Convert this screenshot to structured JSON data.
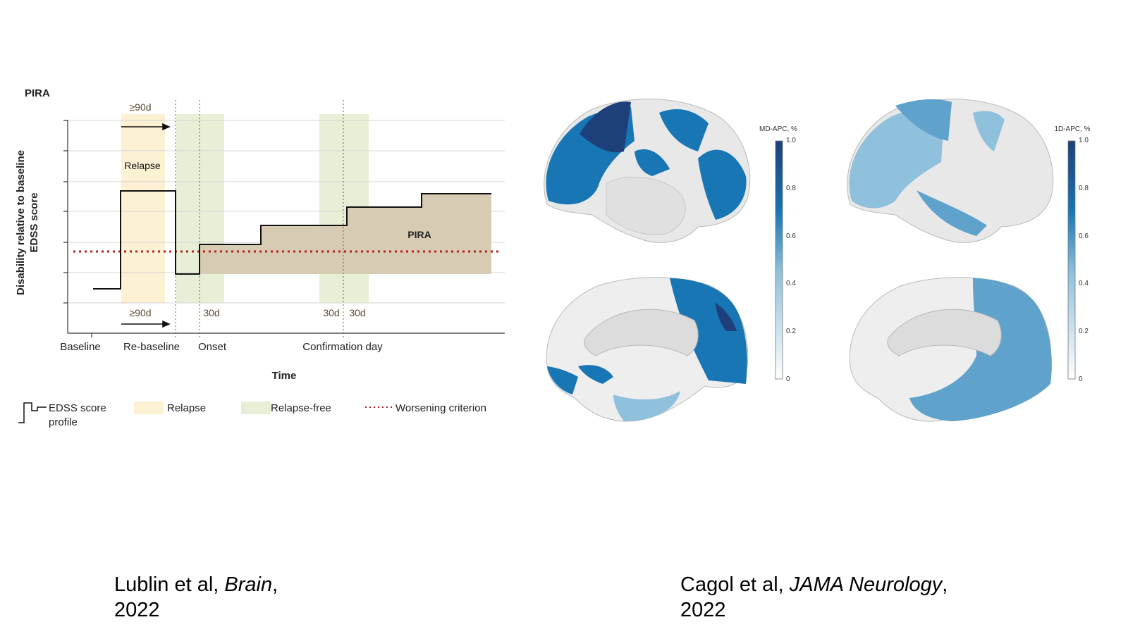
{
  "left_figure": {
    "panel_title": "PIRA",
    "y_axis_label_line1": "Disability relative to baseline",
    "y_axis_label_line2": "EDSS score",
    "x_axis_label": "Time",
    "x_ticks": [
      "Baseline",
      "Re-baseline",
      "Onset",
      "Confirmation day"
    ],
    "relapse_label": "Relapse",
    "pira_label": "PIRA",
    "interval_top": "≥90d",
    "interval_bottom": "≥90d",
    "interval_onset": "30d",
    "interval_confirm_before": "30d",
    "interval_confirm_after": "30d",
    "legend": {
      "edss_line1": "EDSS score",
      "edss_line2": "profile",
      "relapse": "Relapse",
      "relapse_free": "Relapse-free",
      "worsening": "Worsening criterion"
    },
    "colors": {
      "relapse_band": "#fdf1d3",
      "relapse_free_band": "#e7efd6",
      "pira_area": "#d8cbb4",
      "worsening_line": "#b22222",
      "edss_line": "#111111"
    }
  },
  "right_figure": {
    "colorbar_left_title": "MD-APC, %",
    "colorbar_right_title": "1D-APC, %",
    "colorbar_ticks": [
      "1.0",
      "0.8",
      "0.6",
      "0.4",
      "0.2",
      "0"
    ],
    "colors": {
      "dark": "#1d3f7a",
      "mid": "#1876b5",
      "light": "#8fc0dc",
      "cortex": "#e8e8e8"
    }
  },
  "captions": {
    "left": {
      "authors": "Lublin et al, ",
      "journal": "Brain",
      "suffix": ",",
      "year": "2022"
    },
    "right": {
      "authors": "Cagol et al, ",
      "journal": "JAMA Neurology",
      "suffix": ",",
      "year": "2022"
    }
  }
}
